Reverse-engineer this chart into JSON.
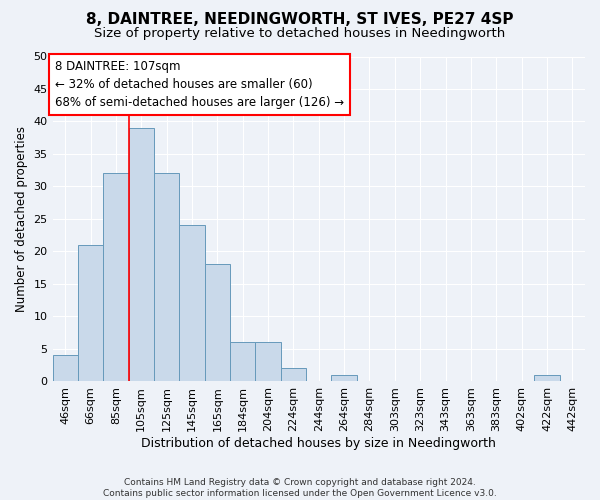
{
  "title": "8, DAINTREE, NEEDINGWORTH, ST IVES, PE27 4SP",
  "subtitle": "Size of property relative to detached houses in Needingworth",
  "xlabel": "Distribution of detached houses by size in Needingworth",
  "ylabel": "Number of detached properties",
  "footer_line1": "Contains HM Land Registry data © Crown copyright and database right 2024.",
  "footer_line2": "Contains public sector information licensed under the Open Government Licence v3.0.",
  "categories": [
    "46sqm",
    "66sqm",
    "85sqm",
    "105sqm",
    "125sqm",
    "145sqm",
    "165sqm",
    "184sqm",
    "204sqm",
    "224sqm",
    "244sqm",
    "264sqm",
    "284sqm",
    "303sqm",
    "323sqm",
    "343sqm",
    "363sqm",
    "383sqm",
    "402sqm",
    "422sqm",
    "442sqm"
  ],
  "values": [
    4,
    21,
    32,
    39,
    32,
    24,
    18,
    6,
    6,
    2,
    0,
    1,
    0,
    0,
    0,
    0,
    0,
    0,
    0,
    1,
    0
  ],
  "bar_color": "#c9d9ea",
  "bar_edge_color": "#6699bb",
  "ylim": [
    0,
    50
  ],
  "yticks": [
    0,
    5,
    10,
    15,
    20,
    25,
    30,
    35,
    40,
    45,
    50
  ],
  "red_line_x": 2.5,
  "annotation_line1": "8 DAINTREE: 107sqm",
  "annotation_line2": "← 32% of detached houses are smaller (60)",
  "annotation_line3": "68% of semi-detached houses are larger (126) →",
  "background_color": "#eef2f8",
  "plot_bg_color": "#eef2f8",
  "grid_color": "#ffffff",
  "title_fontsize": 11,
  "subtitle_fontsize": 9.5,
  "xlabel_fontsize": 9,
  "ylabel_fontsize": 8.5,
  "tick_fontsize": 8,
  "annotation_fontsize": 8.5,
  "footer_fontsize": 6.5
}
